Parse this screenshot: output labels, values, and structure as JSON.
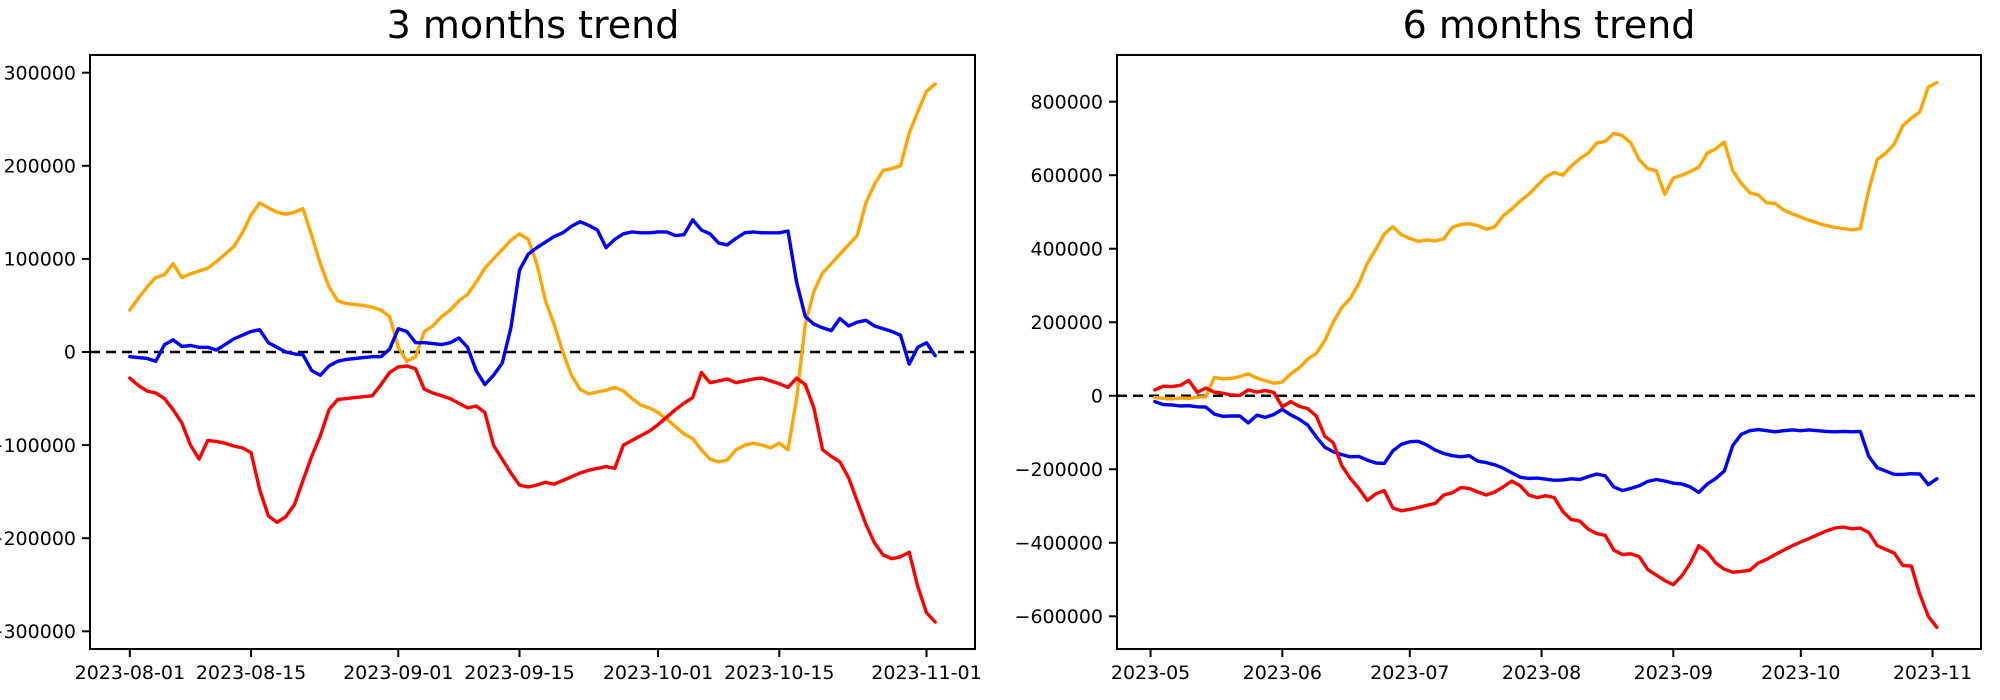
{
  "page": {
    "background": "#ffffff",
    "text_color": "#000000"
  },
  "chart_data": [
    {
      "type": "line",
      "title": "3 months trend",
      "x_start_date": "2023-08-01",
      "xlim_days": [
        -4.6,
        97.6
      ],
      "ylim": [
        -319000,
        319000
      ],
      "grid": false,
      "legend": null,
      "zero_line": {
        "style": "dashed",
        "color": "#000000"
      },
      "x_tick_labels": [
        "2023-08-01",
        "2023-08-15",
        "2023-09-01",
        "2023-09-15",
        "2023-10-01",
        "2023-10-15",
        "2023-11-01"
      ],
      "x_tick_days": [
        0,
        14,
        31,
        45,
        61,
        75,
        92
      ],
      "y_tick_labels": [
        "300000",
        "200000",
        "100000",
        "0",
        "−100000",
        "−200000",
        "−300000"
      ],
      "y_tick_values": [
        300000.0,
        200000.0,
        100000.0,
        0,
        -100000.0,
        -200000.0,
        -300000.0
      ],
      "series": [
        {
          "name": "orange-series",
          "color": "#ffa500",
          "x_start_day": 0,
          "x_step_days": 1,
          "values": [
            45000.0,
            58000.0,
            70000.0,
            80000.0,
            83000.0,
            95000.0,
            80000.0,
            84000.0,
            87000.0,
            90000.0,
            97000.0,
            105000.0,
            113000.0,
            128000.0,
            147000.0,
            160000.0,
            155000.0,
            150000.0,
            148000.0,
            150000.0,
            154000.0,
            125000.0,
            95000.0,
            70000.0,
            55000.0,
            52000.0,
            51000.0,
            50000.0,
            48000.0,
            45000.0,
            38000.0,
            5000.0,
            -10000.0,
            -5000.0,
            22000.0,
            28000.0,
            38000.0,
            45000.0,
            55000.0,
            62000.0,
            75000.0,
            90000.0,
            100000.0,
            110000.0,
            120000.0,
            127000.0,
            121000.0,
            95000.0,
            55000.0,
            30000.0,
            0,
            -25000.0,
            -40000.0,
            -45000.0,
            -43000.0,
            -41000.0,
            -38000.0,
            -42000.0,
            -50000.0,
            -57000.0,
            -60000.0,
            -65000.0,
            -72000.0,
            -80000.0,
            -88000.0,
            -93000.0,
            -105000.0,
            -115000.0,
            -118000.0,
            -116000.0,
            -105000.0,
            -100000.0,
            -98000.0,
            -100000.0,
            -103000.0,
            -98000.0,
            -105000.0,
            -50000.0,
            30000.0,
            65000.0,
            85000.0,
            95000.0,
            105000.0,
            115000.0,
            125000.0,
            160000.0,
            180000.0,
            195000.0,
            197000.0,
            200000.0,
            235000.0,
            258000.0,
            280000.0,
            288000.0
          ]
        },
        {
          "name": "blue-series",
          "color": "#0000ff",
          "x_start_day": 0,
          "x_step_days": 1,
          "values": [
            -5000.0,
            -6000.0,
            -7000.0,
            -10000.0,
            8000.0,
            13000.0,
            6000.0,
            7000.0,
            5000.0,
            5000.0,
            2000.0,
            8000.0,
            14000.0,
            18000.0,
            22000.0,
            24000.0,
            10000.0,
            5000.0,
            0,
            -2000.0,
            -3000.0,
            -20000.0,
            -25000.0,
            -15000.0,
            -10000.0,
            -8000.0,
            -7000.0,
            -6000.0,
            -5000.0,
            -5000.0,
            3000.0,
            25000.0,
            22000.0,
            10000.0,
            10000.0,
            9000.0,
            8000.0,
            10000.0,
            15000.0,
            5000.0,
            -20000.0,
            -35000.0,
            -25000.0,
            -12000.0,
            26000.0,
            88000.0,
            105000.0,
            112000.0,
            118000.0,
            124000.0,
            128000.0,
            135000.0,
            140000.0,
            136000.0,
            131000.0,
            112000.0,
            121000.0,
            127000.0,
            129000.0,
            128000.0,
            128000.0,
            129000.0,
            129000.0,
            125000.0,
            126000.0,
            142000.0,
            131000.0,
            127000.0,
            117000.0,
            115000.0,
            122000.0,
            128000.0,
            129000.0,
            128000.0,
            128000.0,
            128000.0,
            130000.0,
            75000.0,
            38000.0,
            30000.0,
            26000.0,
            23000.0,
            36000.0,
            28000.0,
            32000.0,
            34000.0,
            28000.0,
            25000.0,
            22000.0,
            18000.0,
            -13000.0,
            5000.0,
            10000.0,
            -4000.0
          ]
        },
        {
          "name": "red-series",
          "color": "#ff0000",
          "x_start_day": 0,
          "x_step_days": 1,
          "values": [
            -28000.0,
            -36000.0,
            -42000.0,
            -44000.0,
            -50000.0,
            -62000.0,
            -76000.0,
            -100000.0,
            -115000.0,
            -95000.0,
            -96000.0,
            -98000.0,
            -101000.0,
            -103000.0,
            -108000.0,
            -148000.0,
            -176000.0,
            -183000.0,
            -177000.0,
            -164000.0,
            -138000.0,
            -112000.0,
            -90000.0,
            -62000.0,
            -51000.0,
            -50000.0,
            -49000.0,
            -48000.0,
            -47000.0,
            -35000.0,
            -22000.0,
            -16000.0,
            -15000.0,
            -18000.0,
            -40000.0,
            -44000.0,
            -47000.0,
            -50000.0,
            -55000.0,
            -60000.0,
            -58000.0,
            -65000.0,
            -100000.0,
            -115000.0,
            -130000.0,
            -143000.0,
            -145000.0,
            -143000.0,
            -140000.0,
            -142000.0,
            -138000.0,
            -134000.0,
            -130000.0,
            -127000.0,
            -125000.0,
            -123000.0,
            -125000.0,
            -100000.0,
            -95000.0,
            -90000.0,
            -85000.0,
            -78000.0,
            -70000.0,
            -62000.0,
            -55000.0,
            -49000.0,
            -22000.0,
            -33000.0,
            -31000.0,
            -29000.0,
            -33000.0,
            -31000.0,
            -29000.0,
            -28000.0,
            -31000.0,
            -34000.0,
            -38000.0,
            -28000.0,
            -35000.0,
            -60000.0,
            -105000.0,
            -112000.0,
            -118000.0,
            -135000.0,
            -160000.0,
            -185000.0,
            -205000.0,
            -218000.0,
            -222000.0,
            -220000.0,
            -215000.0,
            -252000.0,
            -280000.0,
            -290000.0
          ]
        }
      ]
    },
    {
      "type": "line",
      "title": "6 months trend",
      "x_start_date": "2023-05-01",
      "xlim_days": [
        -7.9,
        195.4
      ],
      "ylim": [
        -689000,
        927000
      ],
      "grid": false,
      "legend": null,
      "zero_line": {
        "style": "dashed",
        "color": "#000000"
      },
      "x_tick_labels": [
        "2023-05",
        "2023-06",
        "2023-07",
        "2023-08",
        "2023-09",
        "2023-10",
        "2023-11"
      ],
      "x_tick_days": [
        0,
        31,
        61,
        92,
        123,
        153,
        184
      ],
      "y_tick_labels": [
        "800000",
        "600000",
        "400000",
        "200000",
        "0",
        "−200000",
        "−400000",
        "−600000"
      ],
      "y_tick_values": [
        800000.0,
        600000.0,
        400000.0,
        200000.0,
        0,
        -200000.0,
        -400000.0,
        -600000.0
      ],
      "series": [
        {
          "name": "orange-series",
          "color": "#ffa500",
          "x_start_day": 1,
          "x_step_days": 2,
          "values": [
            -5000.0,
            -7000.0,
            -9000.0,
            -6000.0,
            -7000.0,
            -4000.0,
            -3000.0,
            50000.0,
            46000.0,
            47000.0,
            52000.0,
            60000.0,
            48000.0,
            41000.0,
            34000.0,
            37000.0,
            60000.0,
            76000.0,
            100000.0,
            115000.0,
            150000.0,
            200000.0,
            240000.0,
            265000.0,
            305000.0,
            360000.0,
            398000.0,
            440000.0,
            460000.0,
            438000.0,
            428000.0,
            420000.0,
            424000.0,
            421000.0,
            427000.0,
            458000.0,
            466000.0,
            468000.0,
            463000.0,
            453000.0,
            460000.0,
            490000.0,
            508000.0,
            530000.0,
            548000.0,
            572000.0,
            595000.0,
            608000.0,
            600000.0,
            625000.0,
            645000.0,
            660000.0,
            688000.0,
            692000.0,
            714000.0,
            708000.0,
            688000.0,
            642000.0,
            618000.0,
            612000.0,
            548000.0,
            592000.0,
            600000.0,
            610000.0,
            622000.0,
            660000.0,
            672000.0,
            690000.0,
            612000.0,
            578000.0,
            552000.0,
            546000.0,
            525000.0,
            523000.0,
            505000.0,
            495000.0,
            486000.0,
            477000.0,
            470000.0,
            463000.0,
            458000.0,
            455000.0,
            451000.0,
            455000.0,
            560000.0,
            643000.0,
            660000.0,
            685000.0,
            735000.0,
            755000.0,
            772000.0,
            840000.0,
            852000.0
          ]
        },
        {
          "name": "blue-series",
          "color": "#0000ff",
          "x_start_day": 1,
          "x_step_days": 2,
          "values": [
            -16000.0,
            -24000.0,
            -25000.0,
            -28000.0,
            -27000.0,
            -30000.0,
            -31000.0,
            -50000.0,
            -56000.0,
            -55000.0,
            -55000.0,
            -74000.0,
            -53000.0,
            -59000.0,
            -51000.0,
            -37000.0,
            -52000.0,
            -64000.0,
            -80000.0,
            -112000.0,
            -140000.0,
            -152000.0,
            -160000.0,
            -166000.0,
            -165000.0,
            -175000.0,
            -183000.0,
            -184000.0,
            -150000.0,
            -132000.0,
            -125000.0,
            -124000.0,
            -134000.0,
            -148000.0,
            -157000.0,
            -163000.0,
            -166000.0,
            -163000.0,
            -178000.0,
            -182000.0,
            -188000.0,
            -197000.0,
            -210000.0,
            -222000.0,
            -225000.0,
            -224000.0,
            -227000.0,
            -230000.0,
            -229000.0,
            -226000.0,
            -228000.0,
            -220000.0,
            -213000.0,
            -218000.0,
            -248000.0,
            -258000.0,
            -252000.0,
            -245000.0,
            -233000.0,
            -228000.0,
            -232000.0,
            -238000.0,
            -240000.0,
            -248000.0,
            -263000.0,
            -240000.0,
            -225000.0,
            -205000.0,
            -135000.0,
            -105000.0,
            -95000.0,
            -92000.0,
            -95000.0,
            -98000.0,
            -95000.0,
            -93000.0,
            -95000.0,
            -93000.0,
            -95000.0,
            -97000.0,
            -98000.0,
            -97000.0,
            -98000.0,
            -97000.0,
            -165000.0,
            -196000.0,
            -205000.0,
            -214000.0,
            -214000.0,
            -212000.0,
            -213000.0,
            -242000.0,
            -226000.0
          ]
        },
        {
          "name": "red-series",
          "color": "#ff0000",
          "x_start_day": 1,
          "x_step_days": 2,
          "values": [
            16000.0,
            26000.0,
            25000.0,
            28000.0,
            42000.0,
            9000.0,
            21000.0,
            10000.0,
            7000.0,
            2000.0,
            1000.0,
            16000.0,
            10000.0,
            14000.0,
            9000.0,
            -30000.0,
            -16000.0,
            -29000.0,
            -35000.0,
            -55000.0,
            -110000.0,
            -128000.0,
            -190000.0,
            -225000.0,
            -252000.0,
            -285000.0,
            -267000.0,
            -258000.0,
            -305000.0,
            -313000.0,
            -309000.0,
            -304000.0,
            -298000.0,
            -293000.0,
            -270000.0,
            -264000.0,
            -250000.0,
            -252000.0,
            -262000.0,
            -270000.0,
            -262000.0,
            -248000.0,
            -232000.0,
            -245000.0,
            -270000.0,
            -277000.0,
            -272000.0,
            -277000.0,
            -315000.0,
            -337000.0,
            -341000.0,
            -363000.0,
            -375000.0,
            -380000.0,
            -420000.0,
            -432000.0,
            -430000.0,
            -438000.0,
            -473000.0,
            -488000.0,
            -503000.0,
            -514000.0,
            -490000.0,
            -455000.0,
            -408000.0,
            -425000.0,
            -455000.0,
            -472000.0,
            -480000.0,
            -478000.0,
            -475000.0,
            -455000.0,
            -445000.0,
            -432000.0,
            -420000.0,
            -408000.0,
            -398000.0,
            -388000.0,
            -378000.0,
            -368000.0,
            -360000.0,
            -357000.0,
            -362000.0,
            -360000.0,
            -372000.0,
            -408000.0,
            -418000.0,
            -428000.0,
            -462000.0,
            -463000.0,
            -540000.0,
            -600000.0,
            -630000.0
          ]
        }
      ]
    }
  ]
}
